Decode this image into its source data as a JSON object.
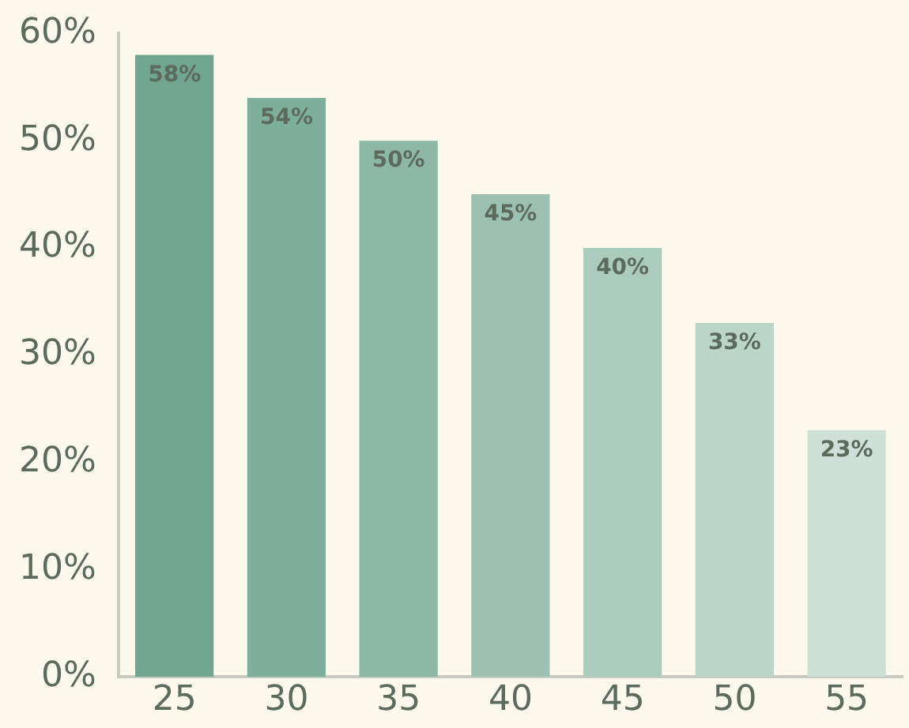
{
  "chart_data": {
    "type": "bar",
    "categories": [
      "25",
      "30",
      "35",
      "40",
      "45",
      "50",
      "55"
    ],
    "values": [
      58,
      54,
      50,
      45,
      40,
      33,
      23
    ],
    "colors": [
      "#6fa591",
      "#7eae9c",
      "#8db8a7",
      "#9cc1b2",
      "#abcbbd",
      "#bbd5c9",
      "#cfe0d8"
    ],
    "value_labels": [
      "58%",
      "54%",
      "50%",
      "45%",
      "40%",
      "33%",
      "23%"
    ],
    "ylim": [
      0,
      60
    ],
    "yticks": [
      {
        "value": 0,
        "label": "0%"
      },
      {
        "value": 10,
        "label": "10%"
      },
      {
        "value": 20,
        "label": "20%"
      },
      {
        "value": 30,
        "label": "30%"
      },
      {
        "value": 40,
        "label": "40%"
      },
      {
        "value": 50,
        "label": "50%"
      },
      {
        "value": 60,
        "label": "60%"
      }
    ],
    "grid": false,
    "legend": false
  }
}
